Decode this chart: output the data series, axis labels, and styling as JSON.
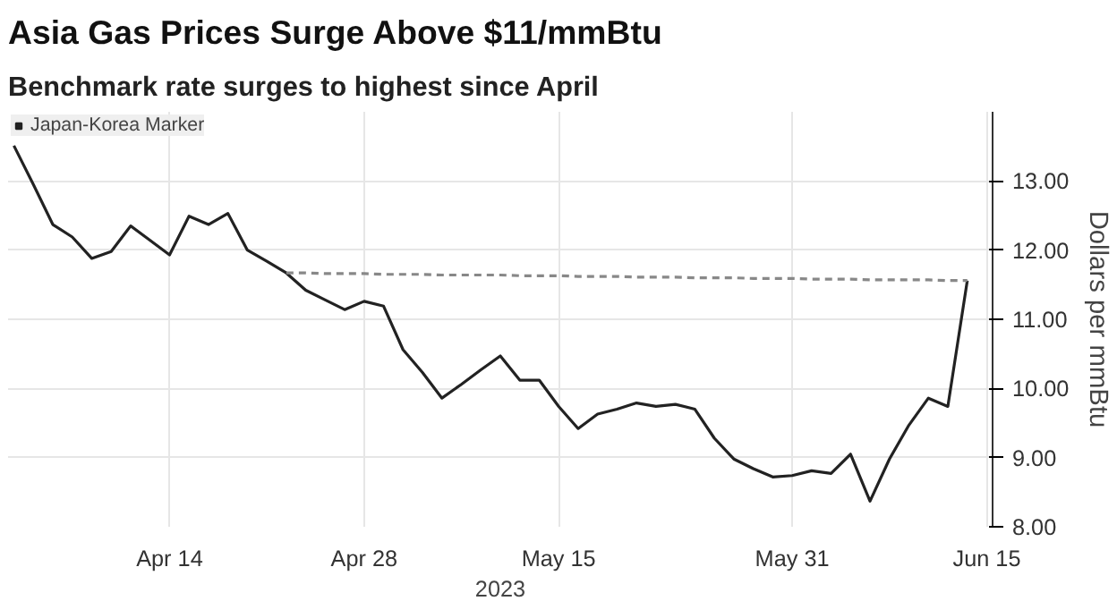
{
  "chart_data": {
    "type": "line",
    "title": "Asia Gas Prices Surge Above $11/mmBtu",
    "subtitle": "Benchmark rate surges to highest since April",
    "xlabel": "2023",
    "ylabel": "Dollars per mmBtu",
    "categories": [
      null,
      null,
      null,
      null,
      null,
      null,
      null,
      null,
      "Apr 14",
      null,
      null,
      null,
      null,
      null,
      null,
      null,
      null,
      null,
      "Apr 28",
      null,
      null,
      null,
      null,
      null,
      null,
      null,
      null,
      null,
      "May 15",
      null,
      null,
      null,
      null,
      null,
      null,
      null,
      null,
      null,
      null,
      null,
      "May 31",
      null,
      null,
      null,
      null,
      null,
      null,
      null,
      null,
      null,
      "Jun 15"
    ],
    "series": [
      {
        "name": "Japan-Korea Marker",
        "color": "#222222",
        "line_style": "solid",
        "values": [
          13.51,
          12.95,
          12.37,
          12.19,
          11.88,
          11.98,
          12.35,
          12.14,
          11.93,
          12.49,
          12.37,
          12.53,
          12.0,
          11.84,
          11.67,
          11.42,
          11.28,
          11.14,
          11.26,
          11.19,
          10.56,
          10.23,
          9.86,
          10.06,
          10.27,
          10.47,
          10.12,
          10.12,
          9.74,
          9.42,
          9.63,
          9.7,
          9.79,
          9.74,
          9.77,
          9.7,
          9.28,
          8.98,
          8.84,
          8.72,
          8.74,
          8.81,
          8.77,
          9.05,
          8.37,
          8.98,
          9.47,
          9.86,
          9.74,
          11.56,
          null
        ]
      },
      {
        "color": "#888888",
        "line_style": "dashed",
        "values": [
          null,
          null,
          null,
          null,
          null,
          null,
          null,
          null,
          null,
          null,
          null,
          null,
          null,
          null,
          11.67,
          11.67,
          11.66,
          11.66,
          11.66,
          11.65,
          11.65,
          11.65,
          11.64,
          11.64,
          11.64,
          11.64,
          11.63,
          11.63,
          11.63,
          11.62,
          11.62,
          11.62,
          11.61,
          11.61,
          11.61,
          11.6,
          11.6,
          11.6,
          11.59,
          11.59,
          11.59,
          11.58,
          11.58,
          11.58,
          11.57,
          11.57,
          11.57,
          11.57,
          11.56,
          11.56,
          null
        ]
      }
    ],
    "ylim": [
      8,
      14
    ],
    "yticks": [
      {
        "value": 8,
        "label": "8.00"
      },
      {
        "value": 9,
        "label": "9.00"
      },
      {
        "value": 10,
        "label": "10.00"
      },
      {
        "value": 11,
        "label": "11.00"
      },
      {
        "value": 12,
        "label": "12.00"
      },
      {
        "value": 13,
        "label": "13.00"
      }
    ],
    "grid": true,
    "legend": "top left"
  }
}
